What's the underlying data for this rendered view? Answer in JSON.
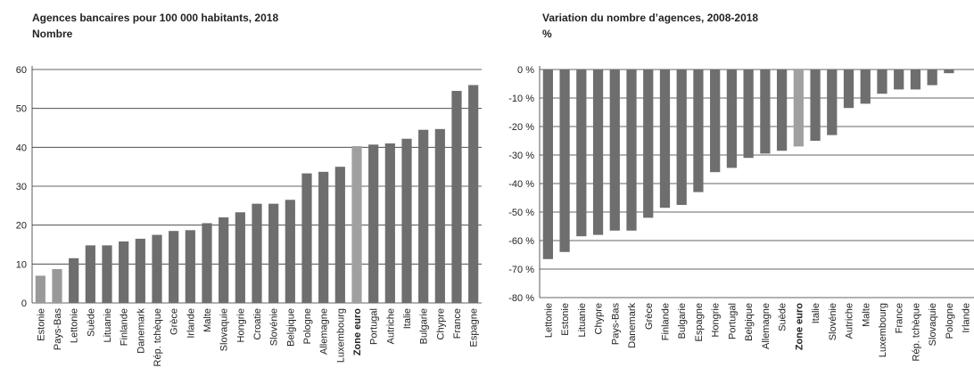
{
  "chart_data": [
    {
      "type": "bar",
      "title": "Agences bancaires pour 100 000 habitants, 2018",
      "subtitle": "Nombre",
      "categories": [
        "Estonie",
        "Pays-Bas",
        "Lettonie",
        "Suède",
        "Lituanie",
        "Finlande",
        "Danemark",
        "Rép. tchèque",
        "Grèce",
        "Irlande",
        "Malte",
        "Slovaquie",
        "Hongrie",
        "Croatie",
        "Slovénie",
        "Belgique",
        "Pologne",
        "Allemagne",
        "Luxembourg",
        "Zone euro",
        "Portugal",
        "Autriche",
        "Italie",
        "Bulgarie",
        "Chypre",
        "France",
        "Espagne"
      ],
      "values": [
        7,
        8.7,
        11.5,
        14.8,
        14.8,
        15.8,
        16.5,
        17.5,
        18.5,
        18.7,
        20.5,
        22,
        23.3,
        25.5,
        25.5,
        26.5,
        33.3,
        33.7,
        35,
        40.3,
        40.7,
        41,
        42.2,
        44.5,
        44.7,
        54.5,
        56
      ],
      "color": "#6e6e6e",
      "highlight_color": "#a0a0a0",
      "colors": [
        "#999999",
        "#999999",
        "#6e6e6e",
        "#6e6e6e",
        "#6e6e6e",
        "#6e6e6e",
        "#6e6e6e",
        "#6e6e6e",
        "#6e6e6e",
        "#6e6e6e",
        "#6e6e6e",
        "#6e6e6e",
        "#6e6e6e",
        "#6e6e6e",
        "#6e6e6e",
        "#6e6e6e",
        "#6e6e6e",
        "#6e6e6e",
        "#6e6e6e",
        "#a0a0a0",
        "#6e6e6e",
        "#6e6e6e",
        "#6e6e6e",
        "#6e6e6e",
        "#6e6e6e",
        "#6e6e6e",
        "#6e6e6e"
      ],
      "ylim": [
        0,
        60
      ],
      "yticks": [
        0,
        10,
        20,
        30,
        40,
        50,
        60
      ],
      "grid": true
    },
    {
      "type": "bar",
      "title": "Variation du nombre d’agences, 2008-2018",
      "subtitle": "%",
      "categories": [
        "Lettonie",
        "Estonie",
        "Lituanie",
        "Chypre",
        "Pays-Bas",
        "Danemark",
        "Grèce",
        "Finlande",
        "Bulgarie",
        "Espagne",
        "Hongrie",
        "Portugal",
        "Belgique",
        "Allemagne",
        "Suède",
        "Zone euro",
        "Italie",
        "Slovénie",
        "Autriche",
        "Malte",
        "Luxembourg",
        "France",
        "Rép. tchèque",
        "Slovaquie",
        "Pologne",
        "Irlande"
      ],
      "values": [
        -66.5,
        -64,
        -58.5,
        -58,
        -56.5,
        -56.5,
        -52,
        -48.5,
        -47.5,
        -43,
        -36,
        -34.5,
        -31,
        -29.5,
        -28.5,
        -27,
        -25,
        -23,
        -13.5,
        -12,
        -8.5,
        -7,
        -7,
        -5.5,
        -1.3,
        null
      ],
      "color": "#6e6e6e",
      "highlight_color": "#a0a0a0",
      "colors": [
        "#6e6e6e",
        "#6e6e6e",
        "#6e6e6e",
        "#6e6e6e",
        "#6e6e6e",
        "#6e6e6e",
        "#6e6e6e",
        "#6e6e6e",
        "#6e6e6e",
        "#6e6e6e",
        "#6e6e6e",
        "#6e6e6e",
        "#6e6e6e",
        "#6e6e6e",
        "#6e6e6e",
        "#a0a0a0",
        "#6e6e6e",
        "#6e6e6e",
        "#6e6e6e",
        "#6e6e6e",
        "#6e6e6e",
        "#6e6e6e",
        "#6e6e6e",
        "#6e6e6e",
        "#6e6e6e",
        "#6e6e6e"
      ],
      "ylim": [
        -80,
        0
      ],
      "yticks": [
        {
          "value": -80,
          "label": "-80 %"
        },
        {
          "value": -70,
          "label": "-70 %"
        },
        {
          "value": -60,
          "label": "-60 %"
        },
        {
          "value": -50,
          "label": "-50 %"
        },
        {
          "value": -40,
          "label": "-40 %"
        },
        {
          "value": -30,
          "label": "-30 %"
        },
        {
          "value": -20,
          "label": "-20 %"
        },
        {
          "value": -10,
          "label": "-10 %"
        },
        {
          "value": 0,
          "label": "0 %"
        }
      ],
      "grid": true
    }
  ]
}
